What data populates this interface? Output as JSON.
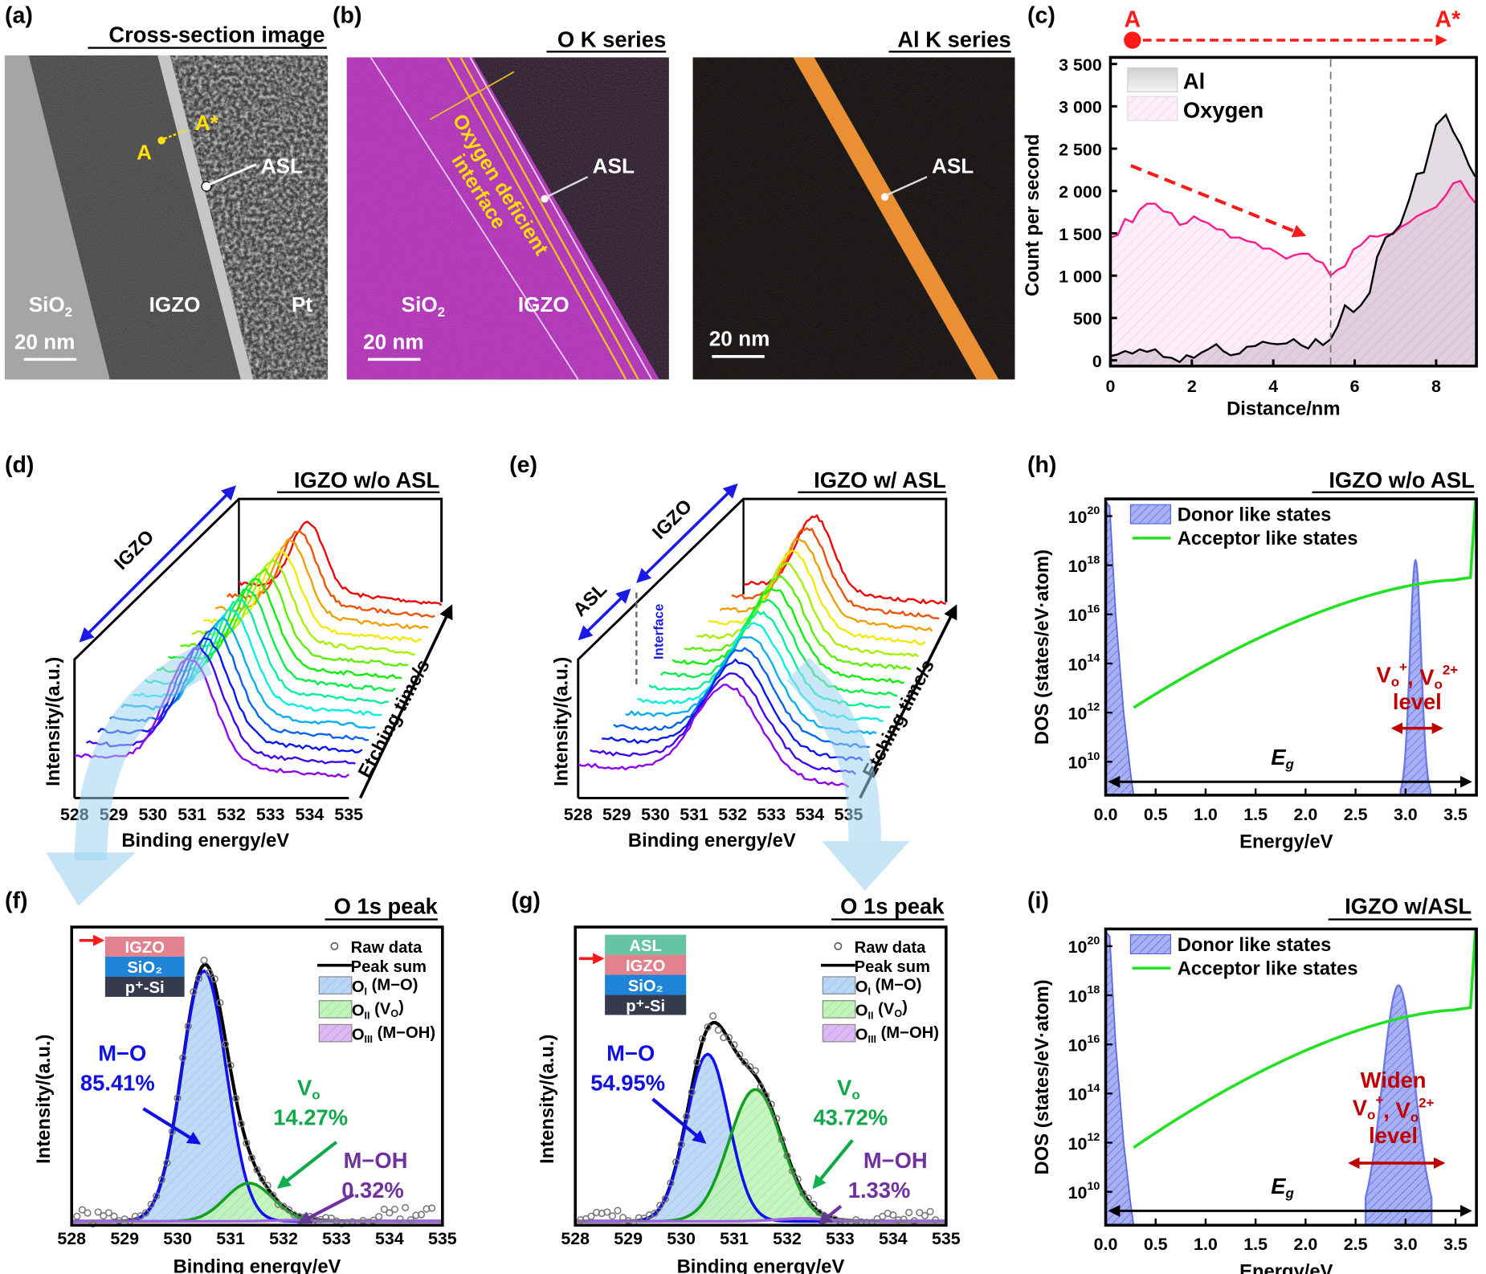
{
  "panels": {
    "a": "(a)",
    "b": "(b)",
    "c": "(c)",
    "d": "(d)",
    "e": "(e)",
    "f": "(f)",
    "g": "(g)",
    "h": "(h)",
    "i": "(i)"
  },
  "panel_a": {
    "title": "Cross-section image",
    "sio2": "SiO",
    "sio2_sub": "2",
    "igzo": "IGZO",
    "pt": "Pt",
    "asl": "ASL",
    "point_a": "A",
    "point_a_star": "A*",
    "scale": "20 nm"
  },
  "panel_b": {
    "o_title": "O K series",
    "al_title": "Al K series",
    "oxygen_line1": "Oxygen deficient",
    "oxygen_line2": "interface",
    "asl": "ASL",
    "sio2": "SiO",
    "sio2_sub": "2",
    "igzo": "IGZO",
    "scale": "20 nm",
    "o_map_color": "#b021b8",
    "al_map_color": "#f08a24"
  },
  "chart_data": [
    {
      "id": "c",
      "type": "area",
      "xlabel": "Distance/nm",
      "ylabel": "Count per second",
      "xlim": [
        0,
        9
      ],
      "ylim": [
        0,
        3500
      ],
      "xticks": [
        0,
        2,
        4,
        6,
        8
      ],
      "yticks": [
        0,
        500,
        1000,
        1500,
        2000,
        2500,
        3000,
        3500
      ],
      "ytick_labels": [
        "0",
        "500",
        "1 000",
        "1 500",
        "2 000",
        "2 500",
        "3 000",
        "3 500"
      ],
      "legend_position": "top-left",
      "interface_x": 5.41,
      "line_start": "A",
      "line_end": "A*",
      "series": [
        {
          "name": "Al",
          "color": "#000000",
          "x": [
            0,
            0.18,
            0.36,
            0.54,
            0.72,
            0.9,
            1.1,
            1.3,
            1.5,
            1.7,
            1.87,
            2.05,
            2.23,
            2.4,
            2.6,
            2.77,
            2.95,
            3.17,
            3.35,
            3.56,
            3.74,
            3.92,
            4.1,
            4.32,
            4.5,
            4.68,
            4.86,
            5.04,
            5.22,
            5.41,
            5.58,
            5.76,
            5.97,
            6.15,
            6.37,
            6.55,
            6.76,
            6.94,
            7.12,
            7.34,
            7.52,
            7.7,
            8.0,
            8.24,
            8.42,
            8.6,
            8.81,
            8.96
          ],
          "y": [
            50,
            70,
            110,
            80,
            130,
            100,
            130,
            40,
            30,
            -20,
            60,
            30,
            90,
            130,
            190,
            110,
            60,
            80,
            160,
            170,
            220,
            200,
            190,
            200,
            250,
            180,
            140,
            250,
            180,
            250,
            400,
            650,
            570,
            650,
            800,
            1220,
            1450,
            1500,
            1600,
            1900,
            2200,
            2220,
            2780,
            2900,
            2700,
            2550,
            2300,
            2170
          ]
        },
        {
          "name": "Oxygen",
          "color": "#ff1a8c",
          "x": [
            0,
            0.18,
            0.36,
            0.54,
            0.72,
            0.9,
            1.1,
            1.3,
            1.5,
            1.7,
            1.87,
            2.05,
            2.23,
            2.4,
            2.6,
            2.77,
            2.95,
            3.17,
            3.35,
            3.56,
            3.74,
            3.92,
            4.1,
            4.32,
            4.5,
            4.68,
            4.86,
            5.04,
            5.22,
            5.41,
            5.58,
            5.76,
            5.97,
            6.15,
            6.37,
            6.55,
            6.76,
            6.94,
            7.12,
            7.34,
            7.52,
            7.73,
            8.0,
            8.24,
            8.42,
            8.6,
            8.81,
            8.96
          ],
          "y": [
            1450,
            1480,
            1670,
            1630,
            1780,
            1850,
            1850,
            1760,
            1740,
            1600,
            1620,
            1700,
            1650,
            1620,
            1550,
            1540,
            1450,
            1450,
            1410,
            1390,
            1320,
            1320,
            1270,
            1200,
            1240,
            1260,
            1260,
            1180,
            1150,
            1000,
            1070,
            1110,
            1310,
            1360,
            1470,
            1460,
            1490,
            1490,
            1570,
            1630,
            1700,
            1750,
            1810,
            1950,
            2090,
            2120,
            1950,
            1860
          ]
        }
      ]
    },
    {
      "id": "d",
      "type": "line",
      "title": "IGZO w/o ASL",
      "xlabel": "Binding energy/eV",
      "ylabel": "Intensity/(a.u.)",
      "depth_label": "Etching time/s",
      "xlim": [
        528,
        535
      ],
      "xticks": [
        528,
        529,
        530,
        531,
        532,
        533,
        534,
        535
      ],
      "layers": [
        "IGZO"
      ],
      "spectra_count": 15
    },
    {
      "id": "e",
      "type": "line",
      "title": "IGZO w/ ASL",
      "xlabel": "Binding energy/eV",
      "ylabel": "Intensity/(a.u.)",
      "depth_label": "Etching time/s",
      "xlim": [
        528,
        535
      ],
      "xticks": [
        528,
        529,
        530,
        531,
        532,
        533,
        534,
        535
      ],
      "layers": [
        "ASL",
        "IGZO"
      ],
      "interface_label": "Interface",
      "spectra_count": 15
    },
    {
      "id": "f",
      "type": "area",
      "title": "O 1s peak",
      "xlabel": "Binding energy/eV",
      "ylabel": "Intensity/(a.u.)",
      "xlim": [
        528,
        535
      ],
      "xticks": [
        528,
        529,
        530,
        531,
        532,
        533,
        534,
        535
      ],
      "stack": [
        "IGZO",
        "SiO₂",
        "p⁺-Si"
      ],
      "legend": [
        "Raw data",
        "Peak sum",
        "O_I (M−O)",
        "O_II (V_O)",
        "O_III (M−OH)"
      ],
      "components": [
        {
          "name": "M−O",
          "center": 530.5,
          "percent": "85.41%",
          "color": "#1010e0"
        },
        {
          "name": "V_o",
          "center": 531.35,
          "percent": "14.27%",
          "color": "#10a040"
        },
        {
          "name": "M−OH",
          "center": 532.3,
          "percent": "0.32%",
          "color": "#7030a0"
        }
      ]
    },
    {
      "id": "g",
      "type": "area",
      "title": "O 1s peak",
      "xlabel": "Binding energy/eV",
      "ylabel": "Intensity/(a.u.)",
      "xlim": [
        528,
        535
      ],
      "xticks": [
        528,
        529,
        530,
        531,
        532,
        533,
        534,
        535
      ],
      "stack": [
        "ASL",
        "IGZO",
        "SiO₂",
        "p⁺-Si"
      ],
      "legend": [
        "Raw data",
        "Peak sum",
        "O_I (M−O)",
        "O_II (V_O)",
        "O_III (M−OH)"
      ],
      "components": [
        {
          "name": "M−O",
          "center": 530.5,
          "percent": "54.95%",
          "color": "#1010e0"
        },
        {
          "name": "V_o",
          "center": 531.4,
          "percent": "43.72%",
          "color": "#10a040"
        },
        {
          "name": "M−OH",
          "center": 532.3,
          "percent": "1.33%",
          "color": "#7030a0"
        }
      ]
    },
    {
      "id": "h",
      "type": "area",
      "title": "IGZO w/o ASL",
      "xlabel": "Energy/eV",
      "ylabel": "DOS (states/eV·atom)",
      "xlim": [
        0,
        3.7
      ],
      "ylim_log10": [
        8.6,
        20.7
      ],
      "y_scale": "log",
      "xticks": [
        0.0,
        0.5,
        1.0,
        1.5,
        2.0,
        2.5,
        3.0,
        3.5
      ],
      "yticks_log10": [
        10,
        12,
        14,
        16,
        18,
        20
      ],
      "legend": [
        "Donor like states",
        "Acceptor like states"
      ],
      "donor_peak_center": 3.1,
      "donor_peak_log10": 18.2,
      "acceptor_log10_at_0_28": 12.2,
      "acceptor_log10_at_3_5": 17.4,
      "annotation_lines": [
        "V_o^+, V_o^2+",
        "level"
      ],
      "gap_label": "E_g"
    },
    {
      "id": "i",
      "type": "area",
      "title": "IGZO w/ASL",
      "xlabel": "Energy/eV",
      "ylabel": "DOS (states/eV·atom)",
      "xlim": [
        0,
        3.7
      ],
      "ylim_log10": [
        8.6,
        20.7
      ],
      "y_scale": "log",
      "xticks": [
        0.0,
        0.5,
        1.0,
        1.5,
        2.0,
        2.5,
        3.0,
        3.5
      ],
      "yticks_log10": [
        10,
        12,
        14,
        16,
        18,
        20
      ],
      "legend": [
        "Donor like states",
        "Acceptor like states"
      ],
      "donor_peak_center": 2.93,
      "donor_peak_log10": 18.4,
      "acceptor_log10_at_0_28": 11.8,
      "acceptor_log10_at_3_5": 17.4,
      "annotation_lines": [
        "Widen",
        "V_o^+, V_o^2+",
        "level"
      ],
      "gap_label": "E_g"
    }
  ]
}
